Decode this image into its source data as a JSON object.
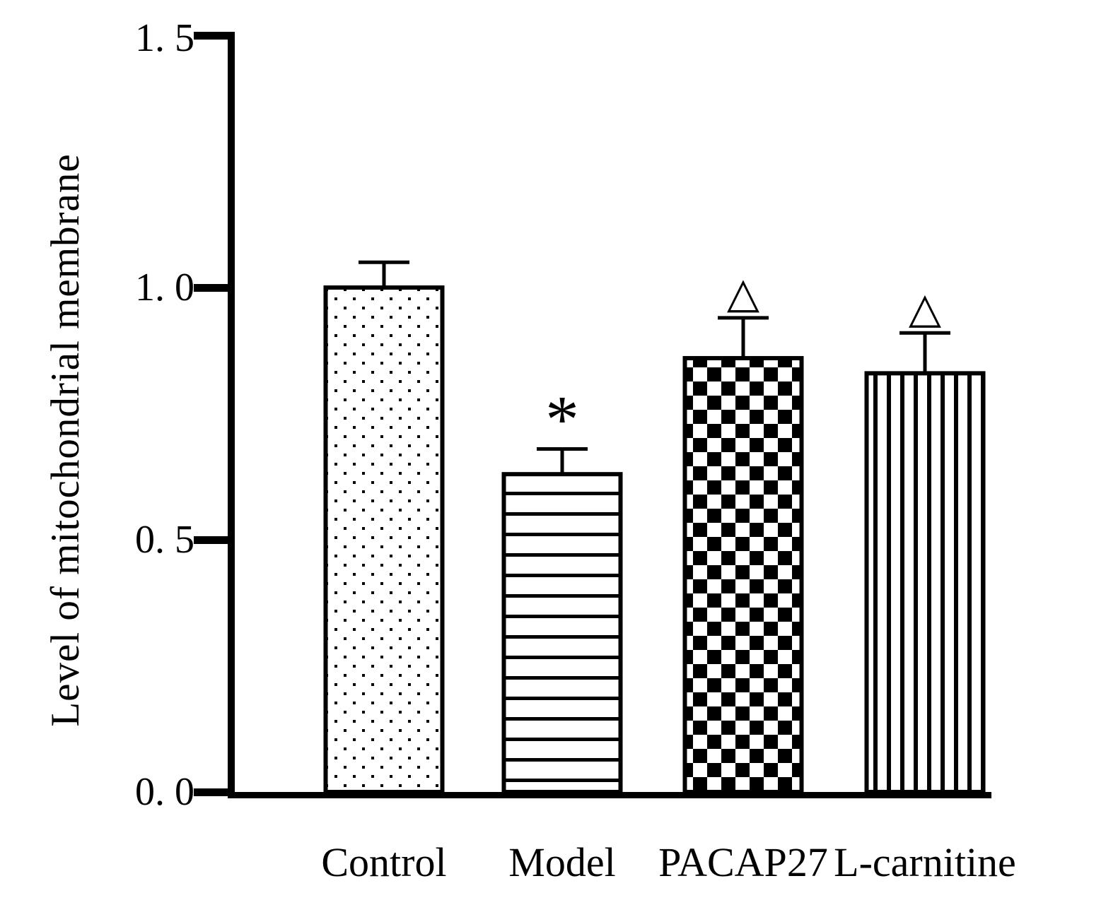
{
  "chart_data": {
    "type": "bar",
    "title": "",
    "ylabel": "Level of mitochondrial membrane",
    "xlabel": "",
    "ylim": [
      0,
      1.5
    ],
    "grid": false,
    "legend": "none",
    "yticks": [
      {
        "value": 1.5,
        "label": "1. 5"
      },
      {
        "value": 1.0,
        "label": "1. 0"
      },
      {
        "value": 0.5,
        "label": "0. 5"
      },
      {
        "value": 0.0,
        "label": "0. 0"
      }
    ],
    "categories": [
      "Control",
      "Model",
      "PACAP27",
      "L-carnitine"
    ],
    "values": [
      1.0,
      0.63,
      0.86,
      0.83
    ],
    "errors": [
      0.05,
      0.05,
      0.08,
      0.08
    ],
    "annotations": [
      "",
      "*",
      "△",
      "△"
    ],
    "patterns": [
      "dots",
      "horizontal-lines",
      "checkerboard",
      "vertical-lines"
    ],
    "colors": {
      "bar_stroke": "#000000",
      "bar_fill_background": "#ffffff",
      "axis": "#000000",
      "background": "#ffffff"
    }
  }
}
